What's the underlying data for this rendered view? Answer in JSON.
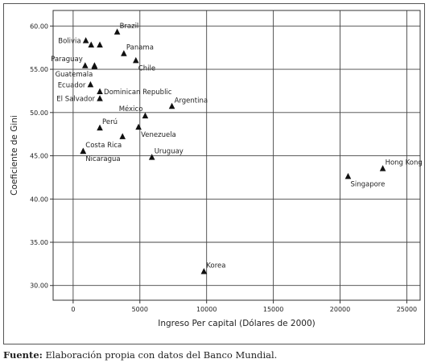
{
  "chart_data": {
    "type": "scatter",
    "xlabel": "Ingreso Per capital (Dólares de 2000)",
    "ylabel": "Coeficiente de Gini",
    "xlim": [
      -1500,
      26000
    ],
    "ylim": [
      28.3,
      61.8
    ],
    "x_ticks": [
      0,
      5000,
      10000,
      15000,
      20000,
      25000
    ],
    "x_tick_labels": [
      "0",
      "5000",
      "10000",
      "15000",
      "20000",
      "25000"
    ],
    "y_ticks": [
      30,
      35,
      40,
      45,
      50,
      55,
      60
    ],
    "y_tick_labels": [
      "30.00",
      "35.00",
      "40.00",
      "45.00",
      "50.00",
      "55.00",
      "60.00"
    ],
    "grid": true,
    "marker": "triangle",
    "points": [
      {
        "label": "Brazil",
        "x": 3300,
        "y": 59.3,
        "label_pos": "ne"
      },
      {
        "label": "Bolivia",
        "x": 950,
        "y": 58.3,
        "label_pos": "w"
      },
      {
        "label": "",
        "x": 1350,
        "y": 57.8,
        "label_pos": "none"
      },
      {
        "label": "",
        "x": 2000,
        "y": 57.8,
        "label_pos": "none"
      },
      {
        "label": "Panama",
        "x": 3800,
        "y": 56.8,
        "label_pos": "ne"
      },
      {
        "label": "Paraguay",
        "x": 900,
        "y": 55.4,
        "label_pos": "nw"
      },
      {
        "label": "",
        "x": 1600,
        "y": 55.3,
        "label_pos": "none"
      },
      {
        "label": "Chile",
        "x": 4700,
        "y": 56.0,
        "label_pos": "se"
      },
      {
        "label": "Guatemala",
        "x": 1600,
        "y": 55.4,
        "label_pos": "sw"
      },
      {
        "label": "Ecuador",
        "x": 1300,
        "y": 53.2,
        "label_pos": "w"
      },
      {
        "label": "Dominican Republic",
        "x": 2000,
        "y": 52.4,
        "label_pos": "e"
      },
      {
        "label": "El Salvador",
        "x": 2000,
        "y": 51.6,
        "label_pos": "w"
      },
      {
        "label": "Argentina",
        "x": 7400,
        "y": 50.7,
        "label_pos": "ne"
      },
      {
        "label": "México",
        "x": 5400,
        "y": 49.6,
        "label_pos": "nw"
      },
      {
        "label": "Perú",
        "x": 2000,
        "y": 48.2,
        "label_pos": "ne"
      },
      {
        "label": "Venezuela",
        "x": 4900,
        "y": 48.3,
        "label_pos": "se"
      },
      {
        "label": "",
        "x": 3700,
        "y": 47.2,
        "label_pos": "none"
      },
      {
        "label": "Costa Rica",
        "x": 750,
        "y": 45.5,
        "label_pos": "ne"
      },
      {
        "label": "Nicaragua",
        "x": 750,
        "y": 45.5,
        "label_pos": "se"
      },
      {
        "label": "Uruguay",
        "x": 5900,
        "y": 44.8,
        "label_pos": "ne"
      },
      {
        "label": "Hong Kong",
        "x": 23200,
        "y": 43.5,
        "label_pos": "ne"
      },
      {
        "label": "Singapore",
        "x": 20600,
        "y": 42.6,
        "label_pos": "se"
      },
      {
        "label": "Korea",
        "x": 9800,
        "y": 31.6,
        "label_pos": "ne"
      }
    ]
  },
  "caption": {
    "label": "Fuente:",
    "text": " Elaboración propia con datos del Banco Mundial."
  }
}
